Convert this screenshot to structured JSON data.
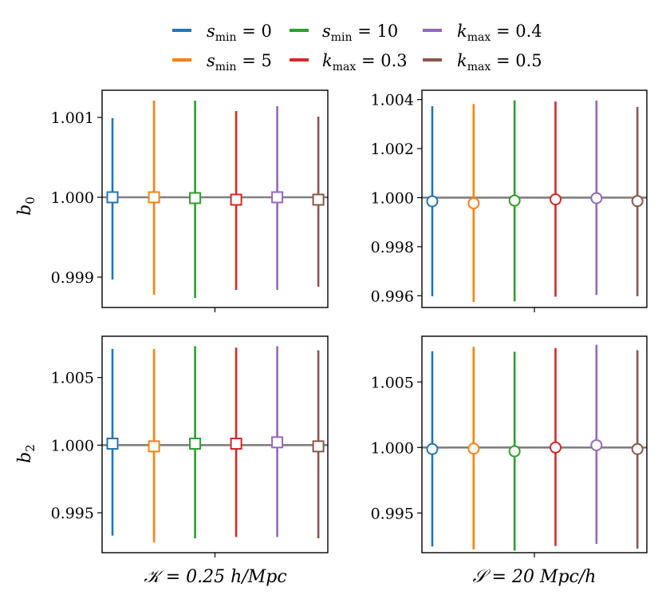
{
  "colors": {
    "smin0": "#1f77b4",
    "smin5": "#ff7f0e",
    "smin10": "#2ca02c",
    "kmax03": "#d62728",
    "kmax04": "#9467bd",
    "kmax05": "#8c564b",
    "reference": "#808080"
  },
  "legend": {
    "position": "top-center",
    "entries": [
      {
        "label": "s_min = 0",
        "color": "#1f77b4"
      },
      {
        "label": "s_min = 5",
        "color": "#ff7f0e"
      },
      {
        "label": "s_min = 10",
        "color": "#2ca02c"
      },
      {
        "label": "k_max = 0.3",
        "color": "#d62728"
      },
      {
        "label": "k_max = 0.4",
        "color": "#9467bd"
      },
      {
        "label": "k_max = 0.5",
        "color": "#8c564b"
      }
    ]
  },
  "chart_data": [
    {
      "type": "errorbar",
      "panel": "top-left",
      "marker": "square",
      "ylabel": "b_0",
      "xlabel": "",
      "ylim": [
        0.99862,
        1.00134
      ],
      "yticks": [
        "0.999",
        "1.000",
        "1.001"
      ],
      "ytick_values": [
        0.999,
        1.0,
        1.001
      ],
      "reference_line": 1.0,
      "series": [
        {
          "name": "s_min = 0",
          "value": 1.0,
          "err_low": 0.99897,
          "err_high": 1.00099
        },
        {
          "name": "s_min = 5",
          "value": 1.0,
          "err_low": 0.99878,
          "err_high": 1.00121
        },
        {
          "name": "s_min = 10",
          "value": 0.99999,
          "err_low": 0.99874,
          "err_high": 1.00121
        },
        {
          "name": "k_max = 0.3",
          "value": 0.99997,
          "err_low": 0.99884,
          "err_high": 1.00108
        },
        {
          "name": "k_max = 0.4",
          "value": 1.0,
          "err_low": 0.99884,
          "err_high": 1.00114
        },
        {
          "name": "k_max = 0.5",
          "value": 0.99997,
          "err_low": 0.99888,
          "err_high": 1.00101
        }
      ]
    },
    {
      "type": "errorbar",
      "panel": "top-right",
      "marker": "circle",
      "ylabel": "",
      "xlabel": "",
      "ylim": [
        0.99552,
        1.00438
      ],
      "yticks": [
        "0.996",
        "0.998",
        "1.000",
        "1.002",
        "1.004"
      ],
      "ytick_values": [
        0.996,
        0.998,
        1.0,
        1.002,
        1.004
      ],
      "reference_line": 1.0,
      "series": [
        {
          "name": "s_min = 0",
          "value": 0.99985,
          "err_low": 0.99598,
          "err_high": 1.00373
        },
        {
          "name": "s_min = 5",
          "value": 0.99977,
          "err_low": 0.99575,
          "err_high": 1.00382
        },
        {
          "name": "s_min = 10",
          "value": 0.99988,
          "err_low": 0.99577,
          "err_high": 1.00397
        },
        {
          "name": "k_max = 0.3",
          "value": 0.99993,
          "err_low": 0.99596,
          "err_high": 1.00392
        },
        {
          "name": "k_max = 0.4",
          "value": 0.99998,
          "err_low": 0.99603,
          "err_high": 1.00396
        },
        {
          "name": "k_max = 0.5",
          "value": 0.99986,
          "err_low": 0.99598,
          "err_high": 1.0037
        }
      ]
    },
    {
      "type": "errorbar",
      "panel": "bottom-left",
      "marker": "square",
      "ylabel": "b_2",
      "xlabel": "𝒦 = 0.25 h/Mpc",
      "ylim": [
        0.99205,
        1.00805
      ],
      "yticks": [
        "0.995",
        "1.000",
        "1.005"
      ],
      "ytick_values": [
        0.995,
        1.0,
        1.005
      ],
      "reference_line": 1.0,
      "series": [
        {
          "name": "s_min = 0",
          "value": 1.00011,
          "err_low": 0.99331,
          "err_high": 1.00711
        },
        {
          "name": "s_min = 5",
          "value": 0.99991,
          "err_low": 0.99281,
          "err_high": 1.00711
        },
        {
          "name": "s_min = 10",
          "value": 1.00011,
          "err_low": 0.99311,
          "err_high": 1.00731
        },
        {
          "name": "k_max = 0.3",
          "value": 1.00011,
          "err_low": 0.99321,
          "err_high": 1.00721
        },
        {
          "name": "k_max = 0.4",
          "value": 1.00021,
          "err_low": 0.99321,
          "err_high": 1.00731
        },
        {
          "name": "k_max = 0.5",
          "value": 0.99991,
          "err_low": 0.99311,
          "err_high": 1.00701
        }
      ]
    },
    {
      "type": "errorbar",
      "panel": "bottom-right",
      "marker": "circle",
      "ylabel": "",
      "xlabel": "𝒮 = 20 Mpc/h",
      "ylim": [
        0.99197,
        1.00849
      ],
      "yticks": [
        "0.995",
        "1.000",
        "1.005"
      ],
      "ytick_values": [
        0.995,
        1.0,
        1.005
      ],
      "reference_line": 1.0,
      "series": [
        {
          "name": "s_min = 0",
          "value": 0.99988,
          "err_low": 0.99244,
          "err_high": 1.00735
        },
        {
          "name": "s_min = 5",
          "value": 0.99991,
          "err_low": 0.99222,
          "err_high": 1.00768
        },
        {
          "name": "s_min = 10",
          "value": 0.99971,
          "err_low": 0.99212,
          "err_high": 1.00731
        },
        {
          "name": "k_max = 0.3",
          "value": 1.0,
          "err_low": 0.99248,
          "err_high": 1.00758
        },
        {
          "name": "k_max = 0.4",
          "value": 1.00017,
          "err_low": 0.99264,
          "err_high": 1.00784
        },
        {
          "name": "k_max = 0.5",
          "value": 0.99988,
          "err_low": 0.99228,
          "err_high": 1.00742
        }
      ]
    }
  ]
}
